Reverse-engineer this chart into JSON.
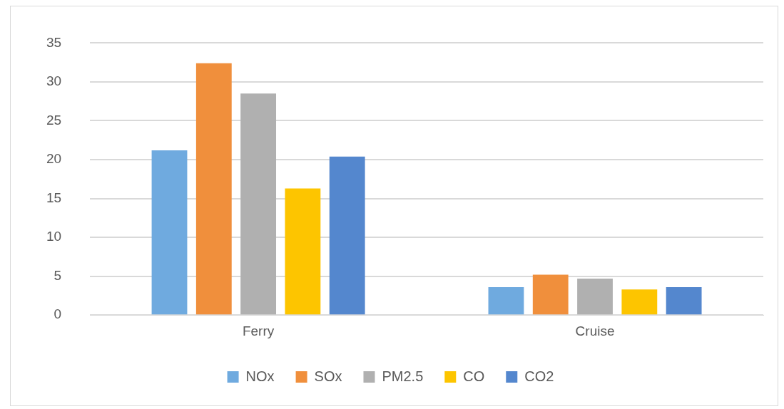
{
  "chart_data": {
    "type": "bar",
    "categories": [
      "Ferry",
      "Cruise"
    ],
    "series": [
      {
        "name": "NOx",
        "color": "#6faadf",
        "values": [
          21.2,
          3.6
        ]
      },
      {
        "name": "SOx",
        "color": "#f08f3c",
        "values": [
          32.4,
          5.2
        ]
      },
      {
        "name": "PM2.5",
        "color": "#b0b0b0",
        "values": [
          28.5,
          4.7
        ]
      },
      {
        "name": "CO",
        "color": "#fdc500",
        "values": [
          16.3,
          3.3
        ]
      },
      {
        "name": "CO2",
        "color": "#5487ce",
        "values": [
          20.4,
          3.6
        ]
      }
    ],
    "ylim": [
      0,
      35
    ],
    "yticks": [
      0,
      5,
      10,
      15,
      20,
      25,
      30,
      35
    ],
    "grid": "y",
    "legend": "bottom"
  }
}
